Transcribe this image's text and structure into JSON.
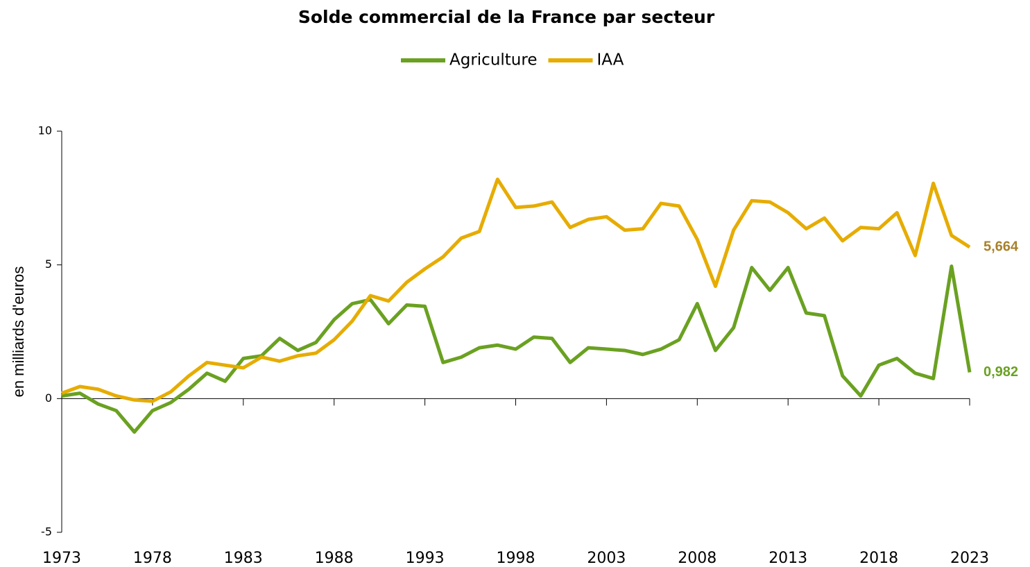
{
  "chart_data": {
    "type": "line",
    "title": "Solde commercial de la France par secteur",
    "y_label": "en milliards d'euros",
    "x": [
      1973,
      1974,
      1975,
      1976,
      1977,
      1978,
      1979,
      1980,
      1981,
      1982,
      1983,
      1984,
      1985,
      1986,
      1987,
      1988,
      1989,
      1990,
      1991,
      1992,
      1993,
      1994,
      1995,
      1996,
      1997,
      1998,
      1999,
      2000,
      2001,
      2002,
      2003,
      2004,
      2005,
      2006,
      2007,
      2008,
      2009,
      2010,
      2011,
      2012,
      2013,
      2014,
      2015,
      2016,
      2017,
      2018,
      2019,
      2020,
      2021,
      2022,
      2023
    ],
    "series": [
      {
        "name": "Agriculture",
        "color": "#6aa121",
        "values": [
          0.1,
          0.2,
          -0.2,
          -0.45,
          -1.25,
          -0.45,
          -0.15,
          0.35,
          0.95,
          0.65,
          1.5,
          1.6,
          2.25,
          1.8,
          2.1,
          2.95,
          3.55,
          3.7,
          2.8,
          3.5,
          3.45,
          1.35,
          1.55,
          1.9,
          2.0,
          1.85,
          2.3,
          2.25,
          1.35,
          1.9,
          1.85,
          1.8,
          1.65,
          1.85,
          2.2,
          3.55,
          1.8,
          2.65,
          4.9,
          4.05,
          4.9,
          3.2,
          3.1,
          0.85,
          0.1,
          1.25,
          1.5,
          0.95,
          0.75,
          4.95,
          0.982
        ],
        "value_labels": [
          null,
          null,
          null,
          null,
          null,
          null,
          null,
          null,
          null,
          null,
          null,
          null,
          null,
          null,
          null,
          null,
          null,
          null,
          null,
          null,
          null,
          null,
          null,
          null,
          null,
          null,
          null,
          null,
          null,
          null,
          null,
          null,
          null,
          null,
          null,
          null,
          null,
          null,
          null,
          null,
          null,
          null,
          null,
          null,
          null,
          null,
          null,
          null,
          null,
          null,
          "0,982"
        ]
      },
      {
        "name": "IAA",
        "color": "#e6ac00",
        "values": [
          0.2,
          0.45,
          0.35,
          0.1,
          -0.05,
          -0.1,
          0.25,
          0.85,
          1.35,
          1.25,
          1.15,
          1.55,
          1.4,
          1.6,
          1.7,
          2.2,
          2.9,
          3.85,
          3.65,
          4.35,
          4.85,
          5.3,
          6.0,
          6.25,
          8.2,
          7.15,
          7.2,
          7.35,
          6.4,
          6.7,
          6.8,
          6.3,
          6.35,
          7.3,
          7.2,
          5.95,
          4.2,
          6.3,
          7.4,
          7.35,
          6.95,
          6.35,
          6.75,
          5.9,
          6.4,
          6.35,
          6.95,
          5.35,
          8.05,
          6.1,
          5.664
        ],
        "value_labels": [
          null,
          null,
          null,
          null,
          null,
          null,
          null,
          null,
          null,
          null,
          null,
          null,
          null,
          null,
          null,
          null,
          null,
          null,
          null,
          null,
          null,
          null,
          null,
          null,
          null,
          null,
          null,
          null,
          null,
          null,
          null,
          null,
          null,
          null,
          null,
          null,
          null,
          null,
          null,
          null,
          null,
          null,
          null,
          null,
          null,
          null,
          null,
          null,
          null,
          null,
          "5,664"
        ]
      }
    ],
    "xlim": [
      1973,
      2023
    ],
    "xticks": [
      1973,
      1978,
      1983,
      1988,
      1993,
      1998,
      2003,
      2008,
      2013,
      2018,
      2023
    ],
    "ylim": [
      -5,
      10
    ],
    "yticks": [
      -5,
      0,
      5,
      10
    ],
    "legend": "top"
  }
}
